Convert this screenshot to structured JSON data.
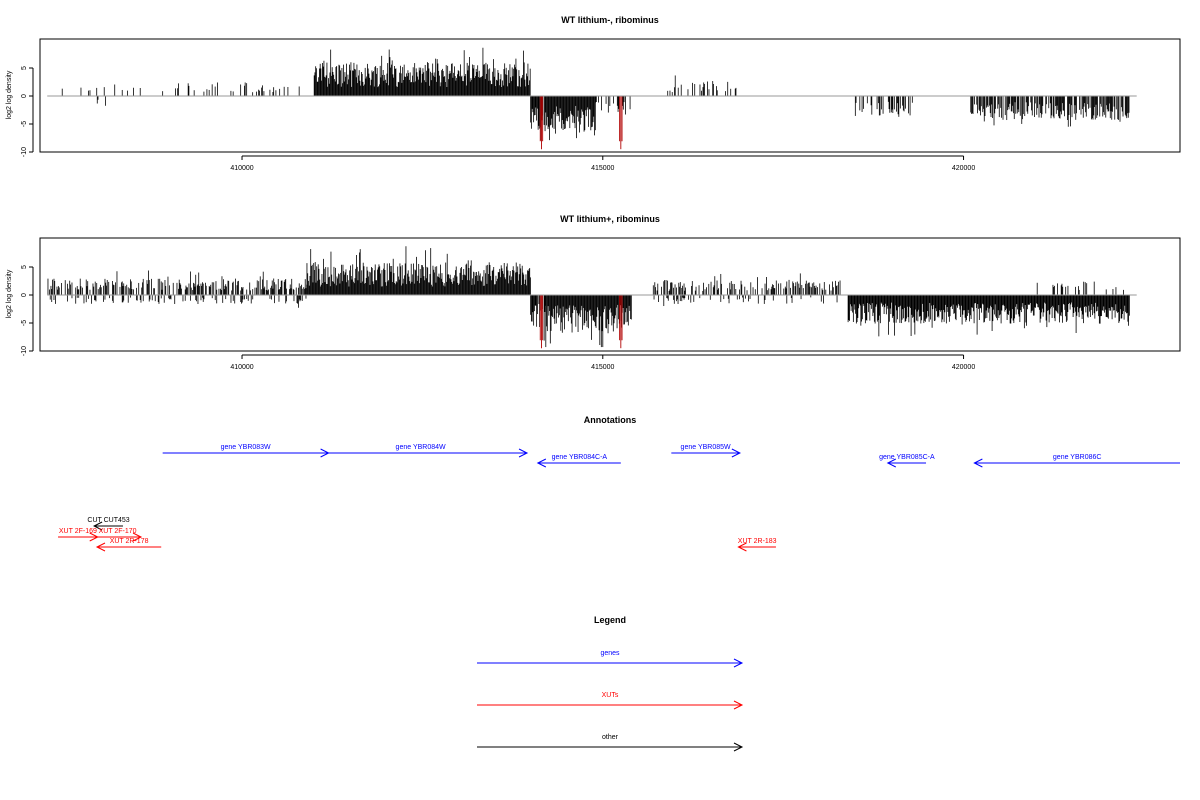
{
  "chart_data": [
    {
      "type": "bar",
      "title": "WT lithium-, ribominus",
      "ylabel": "log2 log density",
      "xlim": [
        407200,
        423000
      ],
      "ylim": [
        -10,
        10
      ],
      "xticks": [
        410000,
        415000,
        420000
      ],
      "yticks": [
        -10,
        -5,
        0,
        5
      ],
      "grid": false,
      "segments": [
        {
          "start": 407300,
          "end": 408600,
          "mean": 1.6,
          "sign": 1,
          "density": 0.15
        },
        {
          "start": 407900,
          "end": 408300,
          "mean": 1.4,
          "sign": -1,
          "density": 0.12
        },
        {
          "start": 408900,
          "end": 410800,
          "mean": 1.8,
          "sign": 1,
          "density": 0.18
        },
        {
          "start": 411000,
          "end": 414000,
          "mean": 4.5,
          "sign": 1,
          "density": 1.0
        },
        {
          "start": 414000,
          "end": 414200,
          "mean": 4.5,
          "sign": -1,
          "density": 0.8
        },
        {
          "start": 414200,
          "end": 414900,
          "mean": 5.0,
          "sign": -1,
          "density": 1.0
        },
        {
          "start": 414900,
          "end": 415400,
          "mean": 2.2,
          "sign": -1,
          "density": 0.35
        },
        {
          "start": 415900,
          "end": 416900,
          "mean": 2.0,
          "sign": 1,
          "density": 0.22
        },
        {
          "start": 418500,
          "end": 419300,
          "mean": 2.8,
          "sign": -1,
          "density": 0.45
        },
        {
          "start": 420100,
          "end": 422300,
          "mean": 3.2,
          "sign": -1,
          "density": 0.75
        }
      ],
      "highlights": [
        {
          "x": 414150,
          "value": -9.5
        },
        {
          "x": 415250,
          "value": -9.5
        }
      ]
    },
    {
      "type": "bar",
      "title": "WT lithium+, ribominus",
      "ylabel": "log2 log density",
      "xlim": [
        407200,
        423000
      ],
      "ylim": [
        -10,
        10
      ],
      "xticks": [
        410000,
        415000,
        420000
      ],
      "yticks": [
        -10,
        -5,
        0,
        5
      ],
      "grid": false,
      "segments": [
        {
          "start": 407300,
          "end": 410900,
          "mean": 2.2,
          "sign": 1,
          "density": 0.55
        },
        {
          "start": 407300,
          "end": 410900,
          "mean": 1.2,
          "sign": -1,
          "density": 0.25
        },
        {
          "start": 410900,
          "end": 414000,
          "mean": 4.3,
          "sign": 1,
          "density": 1.0
        },
        {
          "start": 414000,
          "end": 414200,
          "mean": 4.5,
          "sign": -1,
          "density": 0.8
        },
        {
          "start": 414200,
          "end": 415400,
          "mean": 5.0,
          "sign": -1,
          "density": 1.0
        },
        {
          "start": 415700,
          "end": 418300,
          "mean": 2.0,
          "sign": 1,
          "density": 0.45
        },
        {
          "start": 415700,
          "end": 418300,
          "mean": 1.2,
          "sign": -1,
          "density": 0.2
        },
        {
          "start": 418400,
          "end": 422300,
          "mean": 3.8,
          "sign": -1,
          "density": 1.0
        },
        {
          "start": 421000,
          "end": 422300,
          "mean": 1.8,
          "sign": 1,
          "density": 0.2
        }
      ],
      "highlights": [
        {
          "x": 414150,
          "value": -9.5
        },
        {
          "x": 415250,
          "value": -9.5
        }
      ]
    }
  ],
  "annotations": {
    "title": "Annotations",
    "features": [
      {
        "label": "gene YBR083W",
        "start": 408900,
        "end": 411200,
        "strand": "+",
        "kind": "gene",
        "track": 0
      },
      {
        "label": "gene YBR084W",
        "start": 411000,
        "end": 413950,
        "strand": "+",
        "kind": "gene",
        "track": 0
      },
      {
        "label": "gene YBR084C-A",
        "start": 414100,
        "end": 415250,
        "strand": "-",
        "kind": "gene",
        "track": 1
      },
      {
        "label": "gene YBR085W",
        "start": 415950,
        "end": 416900,
        "strand": "+",
        "kind": "gene",
        "track": 0
      },
      {
        "label": "gene YBR085C-A",
        "start": 418950,
        "end": 419480,
        "strand": "-",
        "kind": "gene",
        "track": 1
      },
      {
        "label": "gene YBR086C",
        "start": 420150,
        "end": 423000,
        "strand": "-",
        "kind": "gene",
        "track": 1
      },
      {
        "label": "CUT CUT453",
        "start": 407950,
        "end": 408350,
        "strand": "-",
        "kind": "other",
        "track": 2
      },
      {
        "label": "XUT 2F-169",
        "start": 407450,
        "end": 408000,
        "strand": "+",
        "kind": "xut",
        "track": 3
      },
      {
        "label": "XUT 2F-170",
        "start": 407950,
        "end": 408600,
        "strand": "+",
        "kind": "xut",
        "track": 3
      },
      {
        "label": "XUT 2R-178",
        "start": 407990,
        "end": 408880,
        "strand": "-",
        "kind": "xut",
        "track": 4
      },
      {
        "label": "XUT 2R-183",
        "start": 416880,
        "end": 417400,
        "strand": "-",
        "kind": "xut",
        "track": 4
      }
    ]
  },
  "legend": {
    "title": "Legend",
    "items": [
      {
        "label": "genes",
        "color": "#0000ff"
      },
      {
        "label": "XUTs",
        "color": "#ff0000"
      },
      {
        "label": "other",
        "color": "#000000"
      }
    ]
  },
  "colors": {
    "gene": "#0000ff",
    "xut": "#ff0000",
    "other": "#000000",
    "bars": "#000000",
    "highlight": "#b00000",
    "baseline": "#9a9a9a"
  }
}
